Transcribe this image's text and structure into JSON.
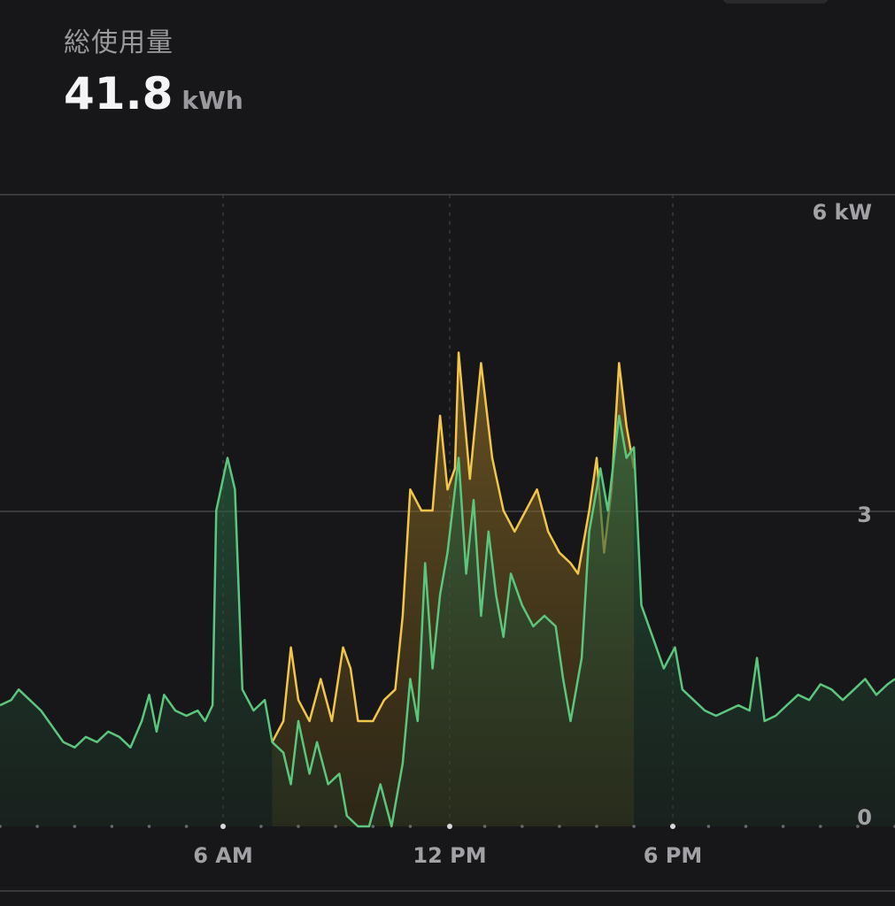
{
  "header": {
    "label": "総使用量",
    "value": "41.8",
    "unit": "kWh"
  },
  "colors": {
    "background": "#171719",
    "green": "#5bc77d",
    "yellow": "#f2c54b",
    "grid": "#3a3a3e"
  },
  "chart_data": {
    "type": "area",
    "title": "",
    "xlabel": "",
    "ylabel": "",
    "x_range_hours": [
      0,
      24
    ],
    "ylim": [
      0,
      6
    ],
    "y_ticks": [
      {
        "value": 6,
        "label": "6 kW"
      },
      {
        "value": 3,
        "label": "3"
      },
      {
        "value": 0,
        "label": "0"
      }
    ],
    "x_ticks": [
      {
        "value": 6,
        "label": "6 AM"
      },
      {
        "value": 12,
        "label": "12 PM"
      },
      {
        "value": 18,
        "label": "6 PM"
      }
    ],
    "grid": true,
    "series": [
      {
        "color": "#f2c54b",
        "points": [
          [
            7.3,
            0.8
          ],
          [
            7.6,
            1.0
          ],
          [
            7.8,
            1.7
          ],
          [
            8.0,
            1.2
          ],
          [
            8.3,
            1.0
          ],
          [
            8.6,
            1.4
          ],
          [
            8.9,
            1.0
          ],
          [
            9.2,
            1.7
          ],
          [
            9.4,
            1.5
          ],
          [
            9.6,
            1.0
          ],
          [
            10.0,
            1.0
          ],
          [
            10.3,
            1.2
          ],
          [
            10.6,
            1.3
          ],
          [
            10.8,
            2.0
          ],
          [
            11.0,
            3.2
          ],
          [
            11.3,
            3.0
          ],
          [
            11.6,
            3.0
          ],
          [
            11.8,
            3.9
          ],
          [
            12.0,
            3.2
          ],
          [
            12.2,
            3.4
          ],
          [
            12.3,
            4.5
          ],
          [
            12.6,
            3.3
          ],
          [
            12.9,
            4.4
          ],
          [
            13.2,
            3.5
          ],
          [
            13.5,
            3.0
          ],
          [
            13.8,
            2.8
          ],
          [
            14.1,
            3.0
          ],
          [
            14.4,
            3.2
          ],
          [
            14.7,
            2.8
          ],
          [
            15.0,
            2.6
          ],
          [
            15.3,
            2.5
          ],
          [
            15.5,
            2.4
          ],
          [
            15.8,
            3.0
          ],
          [
            16.0,
            3.5
          ],
          [
            16.2,
            2.6
          ],
          [
            16.4,
            3.2
          ],
          [
            16.6,
            4.4
          ],
          [
            16.8,
            3.8
          ],
          [
            17.0,
            3.4
          ]
        ]
      },
      {
        "color": "#5bc77d",
        "points": [
          [
            0.0,
            1.15
          ],
          [
            0.3,
            1.2
          ],
          [
            0.5,
            1.3
          ],
          [
            0.8,
            1.2
          ],
          [
            1.1,
            1.1
          ],
          [
            1.4,
            0.95
          ],
          [
            1.7,
            0.8
          ],
          [
            2.0,
            0.75
          ],
          [
            2.3,
            0.85
          ],
          [
            2.6,
            0.8
          ],
          [
            2.9,
            0.9
          ],
          [
            3.2,
            0.85
          ],
          [
            3.5,
            0.75
          ],
          [
            3.8,
            1.0
          ],
          [
            4.0,
            1.25
          ],
          [
            4.2,
            0.9
          ],
          [
            4.4,
            1.25
          ],
          [
            4.7,
            1.1
          ],
          [
            5.0,
            1.05
          ],
          [
            5.3,
            1.1
          ],
          [
            5.5,
            1.0
          ],
          [
            5.7,
            1.15
          ],
          [
            5.8,
            3.0
          ],
          [
            6.1,
            3.5
          ],
          [
            6.3,
            3.2
          ],
          [
            6.5,
            1.3
          ],
          [
            6.8,
            1.1
          ],
          [
            7.1,
            1.2
          ],
          [
            7.3,
            0.8
          ],
          [
            7.6,
            0.7
          ],
          [
            7.8,
            0.4
          ],
          [
            8.0,
            1.0
          ],
          [
            8.3,
            0.5
          ],
          [
            8.5,
            0.8
          ],
          [
            8.8,
            0.4
          ],
          [
            9.1,
            0.5
          ],
          [
            9.3,
            0.1
          ],
          [
            9.6,
            0.0
          ],
          [
            9.9,
            0.0
          ],
          [
            10.2,
            0.4
          ],
          [
            10.5,
            0.0
          ],
          [
            10.8,
            0.6
          ],
          [
            11.0,
            1.4
          ],
          [
            11.2,
            1.0
          ],
          [
            11.4,
            2.5
          ],
          [
            11.6,
            1.5
          ],
          [
            11.8,
            2.2
          ],
          [
            12.0,
            2.6
          ],
          [
            12.3,
            3.5
          ],
          [
            12.5,
            2.4
          ],
          [
            12.7,
            3.1
          ],
          [
            12.9,
            2.0
          ],
          [
            13.1,
            2.8
          ],
          [
            13.3,
            2.2
          ],
          [
            13.5,
            1.8
          ],
          [
            13.7,
            2.4
          ],
          [
            14.0,
            2.1
          ],
          [
            14.3,
            1.9
          ],
          [
            14.6,
            2.0
          ],
          [
            14.9,
            1.9
          ],
          [
            15.1,
            1.4
          ],
          [
            15.3,
            1.0
          ],
          [
            15.6,
            1.6
          ],
          [
            15.8,
            2.8
          ],
          [
            16.1,
            3.4
          ],
          [
            16.3,
            3.0
          ],
          [
            16.6,
            3.9
          ],
          [
            16.8,
            3.5
          ],
          [
            17.0,
            3.6
          ],
          [
            17.2,
            2.1
          ],
          [
            17.5,
            1.8
          ],
          [
            17.8,
            1.5
          ],
          [
            18.1,
            1.7
          ],
          [
            18.3,
            1.3
          ],
          [
            18.6,
            1.2
          ],
          [
            18.9,
            1.1
          ],
          [
            19.2,
            1.05
          ],
          [
            19.5,
            1.1
          ],
          [
            19.8,
            1.15
          ],
          [
            20.1,
            1.1
          ],
          [
            20.3,
            1.6
          ],
          [
            20.5,
            1.0
          ],
          [
            20.8,
            1.05
          ],
          [
            21.1,
            1.15
          ],
          [
            21.4,
            1.25
          ],
          [
            21.7,
            1.2
          ],
          [
            22.0,
            1.35
          ],
          [
            22.3,
            1.3
          ],
          [
            22.6,
            1.2
          ],
          [
            22.9,
            1.3
          ],
          [
            23.2,
            1.4
          ],
          [
            23.5,
            1.25
          ],
          [
            23.8,
            1.35
          ],
          [
            24.0,
            1.4
          ]
        ]
      }
    ]
  }
}
